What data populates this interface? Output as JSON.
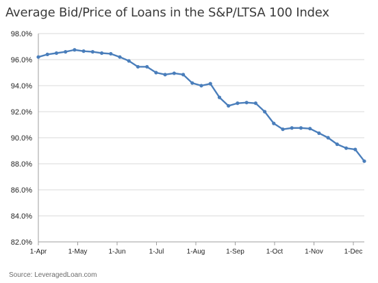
{
  "chart_data": {
    "type": "line",
    "title": "Average Bid/Price of Loans in the S&P/LTSA 100 Index",
    "source": "Source: LeveragedLoan.com",
    "xlabel": "",
    "ylabel": "",
    "ylim": [
      82.0,
      98.0
    ],
    "yticks": [
      82.0,
      84.0,
      86.0,
      88.0,
      90.0,
      92.0,
      94.0,
      96.0,
      98.0
    ],
    "ytick_labels": [
      "82.0%",
      "84.0%",
      "86.0%",
      "88.0%",
      "90.0%",
      "92.0%",
      "94.0%",
      "96.0%",
      "98.0%"
    ],
    "xtick_labels": [
      "1-Apr",
      "1-May",
      "1-Jun",
      "1-Jul",
      "1-Aug",
      "1-Sep",
      "1-Oct",
      "1-Nov",
      "1-Dec"
    ],
    "grid": "horizontal",
    "line_color": "#4a7ebb",
    "series": [
      {
        "values": [
          96.2,
          96.4,
          96.5,
          96.6,
          96.75,
          96.65,
          96.6,
          96.5,
          96.45,
          96.2,
          95.9,
          95.45,
          95.45,
          95.0,
          94.85,
          94.95,
          94.85,
          94.2,
          94.0,
          94.15,
          93.1,
          92.45,
          92.65,
          92.7,
          92.65,
          92.0,
          91.1,
          90.65,
          90.75,
          90.75,
          90.7,
          90.35,
          90.0,
          89.5,
          89.2,
          89.1,
          88.2
        ]
      }
    ]
  }
}
